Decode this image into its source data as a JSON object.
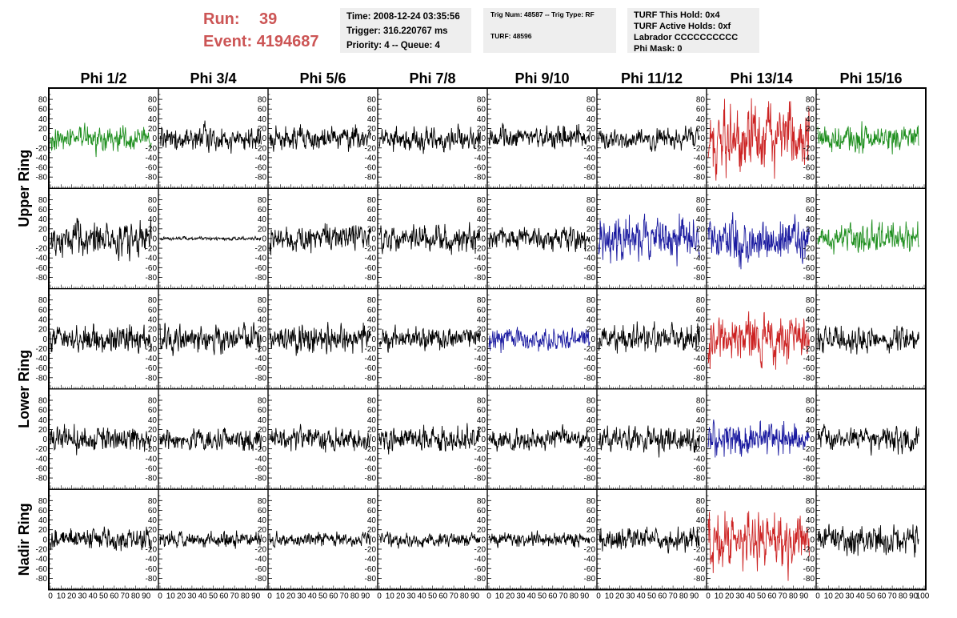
{
  "header": {
    "run_label": "Run:",
    "run_value": "39",
    "event_label": "Event:",
    "event_value": "4194687",
    "time_box": [
      "Time: 2008-12-24 03:35:56",
      "Trigger: 316.220767 ms",
      "Priority: 4 -- Queue: 4"
    ],
    "trig_box": {
      "line1": "Trig Num: 48587 -- Trig Type: RF",
      "line2": "TURF: 48596"
    },
    "turf_box": [
      "TURF This Hold: 0x4",
      "TURF Active Holds: 0xf",
      "Labrador CCCCCCCCCC",
      "Phi Mask: 0"
    ]
  },
  "colors": {
    "header_red": "#cc5555",
    "box_bg": "#eeeeee",
    "default": "#000000",
    "green": "#1f8f1f",
    "blue": "#1a1aa0",
    "red": "#cc2222"
  },
  "chart_data": {
    "type": "line",
    "column_titles": [
      "Phi 1/2",
      "Phi 3/4",
      "Phi 5/6",
      "Phi 7/8",
      "Phi 9/10",
      "Phi 11/12",
      "Phi 13/14",
      "Phi 15/16"
    ],
    "ring_labels": [
      "Upper Ring",
      "Lower Ring",
      "Nadir Ring"
    ],
    "ring_label_rows": [
      [
        0,
        1
      ],
      [
        2,
        3
      ],
      [
        4,
        4
      ]
    ],
    "y_ticks": [
      -80,
      -60,
      -40,
      -20,
      0,
      20,
      40,
      60,
      80
    ],
    "ylim": [
      -95,
      95
    ],
    "x_ticks": [
      0,
      10,
      20,
      30,
      40,
      50,
      60,
      70,
      80,
      90
    ],
    "xlim": [
      0,
      100
    ],
    "last_axis_end_label": "100",
    "grid": false,
    "samples_per_trace": 260,
    "panel_colors": [
      [
        "green",
        "default",
        "default",
        "default",
        "default",
        "default",
        "red",
        "green"
      ],
      [
        "default",
        "default",
        "default",
        "default",
        "default",
        "blue",
        "blue",
        "green"
      ],
      [
        "default",
        "default",
        "default",
        "default",
        "blue",
        "default",
        "red",
        "default"
      ],
      [
        "default",
        "default",
        "default",
        "default",
        "default",
        "default",
        "blue",
        "default"
      ],
      [
        "default",
        "default",
        "default",
        "default",
        "default",
        "default",
        "red",
        "default"
      ]
    ],
    "panel_amplitudes": [
      [
        14,
        13,
        14,
        13,
        14,
        11,
        36,
        16
      ],
      [
        20,
        2,
        14,
        15,
        14,
        26,
        26,
        16
      ],
      [
        15,
        15,
        16,
        13,
        13,
        15,
        30,
        15
      ],
      [
        14,
        13,
        13,
        14,
        12,
        14,
        19,
        14
      ],
      [
        13,
        9,
        8,
        8,
        8,
        13,
        31,
        17
      ]
    ]
  }
}
